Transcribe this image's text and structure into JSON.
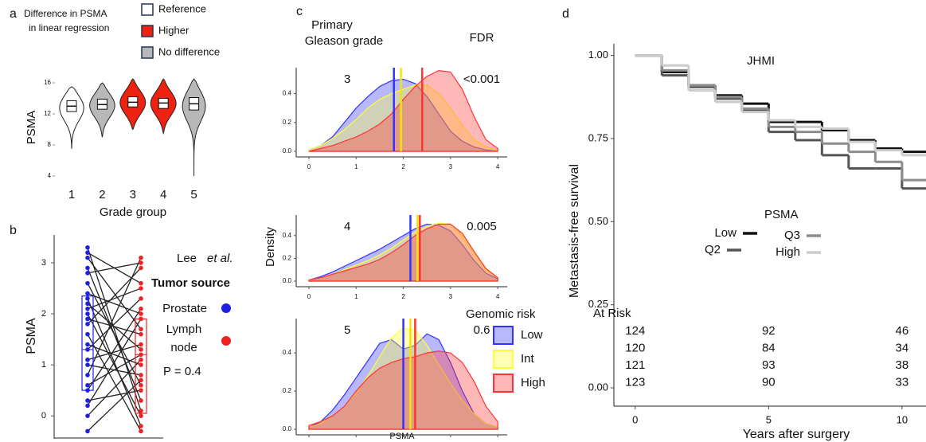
{
  "chart_data": [
    {
      "type": "violin",
      "panel": "a",
      "legend_title": [
        "Difference in PSMA",
        "in linear regression"
      ],
      "legend": [
        {
          "name": "Reference",
          "color": "#ffffff"
        },
        {
          "name": "Higher",
          "color": "#ee2211"
        },
        {
          "name": "No difference",
          "color": "#b8b8b8"
        }
      ],
      "categories": [
        "1",
        "2",
        "3",
        "4",
        "5"
      ],
      "xlabel": "Grade group",
      "ylabel": "PSMA",
      "ylim": [
        3,
        17
      ],
      "yticks": [
        4,
        8,
        12,
        16
      ],
      "groups": [
        {
          "color": "#ffffff",
          "min": 7.5,
          "q1": 12.3,
          "median": 13,
          "q3": 13.7,
          "max": 15.5
        },
        {
          "color": "#b8b8b8",
          "min": 9,
          "q1": 12.6,
          "median": 13.2,
          "q3": 13.9,
          "max": 16
        },
        {
          "color": "#ee2211",
          "min": 10,
          "q1": 12.9,
          "median": 13.5,
          "q3": 14.2,
          "max": 16.5
        },
        {
          "color": "#ee2211",
          "min": 9.5,
          "q1": 12.7,
          "median": 13.4,
          "q3": 14,
          "max": 16.5
        },
        {
          "color": "#b8b8b8",
          "min": 4,
          "q1": 12.5,
          "median": 13.3,
          "q3": 14.1,
          "max": 16.5
        }
      ]
    },
    {
      "type": "paired",
      "panel": "b",
      "ylabel": "PSMA",
      "ylim": [
        -0.45,
        3.5
      ],
      "yticks": [
        0,
        1,
        2,
        3
      ],
      "author": "Lee",
      "author_suffix": "et al.",
      "legend_title": "Tumor source",
      "p_text": "P = 0.4",
      "series": [
        {
          "name": "Prostate",
          "color": "#1f1fe6",
          "values": [
            3.3,
            3.2,
            3.1,
            2.9,
            2.8,
            2.6,
            2.4,
            2.3,
            2.2,
            2.1,
            2.0,
            1.9,
            1.8,
            1.6,
            1.4,
            1.3,
            1.1,
            1.0,
            0.8,
            0.6,
            0.5,
            0.3,
            0.2,
            0.0,
            -0.3
          ],
          "box": {
            "q1": 0.5,
            "median": 1.3,
            "q3": 2.35
          }
        },
        {
          "name": "Lymph node",
          "color": "#ee2222",
          "values": [
            0.1,
            2.6,
            1.7,
            0.3,
            3.0,
            0.6,
            2.0,
            -0.2,
            1.3,
            2.5,
            0.0,
            1.6,
            2.9,
            -0.3,
            1.0,
            2.3,
            1.4,
            0.8,
            3.1,
            1.2,
            2.1,
            0.5,
            1.9,
            1.1,
            0.7
          ],
          "box": {
            "q1": 0.05,
            "median": 1.2,
            "q3": 1.9
          }
        }
      ]
    },
    {
      "type": "density",
      "panel": "c",
      "header": [
        "Primary",
        "Gleason grade"
      ],
      "fdr_title": "FDR",
      "xlabel": "PSMA",
      "ylabel": "Density",
      "xlim": [
        -0.27,
        4.2
      ],
      "xticks": [
        0,
        1,
        2,
        3,
        4
      ],
      "ylim": [
        0,
        0.58
      ],
      "yticks": [
        {
          "value": 0,
          "label": "0.0"
        },
        0.2,
        0.4
      ],
      "legend_title": "Genomic risk",
      "series": [
        {
          "name": "Low",
          "color": "#3333ff"
        },
        {
          "name": "Int",
          "color": "#ffff33"
        },
        {
          "name": "High",
          "color": "#ff3333"
        }
      ],
      "x": [
        0,
        0.25,
        0.5,
        0.75,
        1,
        1.25,
        1.5,
        1.75,
        2,
        2.25,
        2.5,
        2.75,
        3,
        3.25,
        3.5,
        3.75,
        4
      ],
      "panels": [
        {
          "label": "3",
          "fdr": "<0.001",
          "medians": [
            1.8,
            1.95,
            2.4
          ],
          "densities": [
            [
              0.01,
              0.04,
              0.1,
              0.2,
              0.3,
              0.38,
              0.45,
              0.49,
              0.5,
              0.47,
              0.38,
              0.26,
              0.14,
              0.07,
              0.03,
              0.01,
              0.0
            ],
            [
              0.01,
              0.04,
              0.09,
              0.15,
              0.22,
              0.3,
              0.36,
              0.4,
              0.43,
              0.46,
              0.46,
              0.4,
              0.3,
              0.18,
              0.08,
              0.03,
              0.01
            ],
            [
              0.0,
              0.02,
              0.04,
              0.07,
              0.1,
              0.14,
              0.19,
              0.26,
              0.36,
              0.45,
              0.52,
              0.56,
              0.55,
              0.43,
              0.24,
              0.08,
              0.02
            ]
          ]
        },
        {
          "label": "4",
          "fdr": "0.005",
          "medians": [
            2.15,
            2.3,
            2.35
          ],
          "densities": [
            [
              0.01,
              0.04,
              0.08,
              0.13,
              0.18,
              0.23,
              0.28,
              0.34,
              0.4,
              0.46,
              0.5,
              0.49,
              0.44,
              0.32,
              0.18,
              0.07,
              0.02
            ],
            [
              0.01,
              0.03,
              0.06,
              0.1,
              0.14,
              0.18,
              0.23,
              0.29,
              0.36,
              0.43,
              0.48,
              0.51,
              0.5,
              0.4,
              0.25,
              0.1,
              0.03
            ],
            [
              0.01,
              0.03,
              0.06,
              0.09,
              0.12,
              0.15,
              0.19,
              0.25,
              0.32,
              0.4,
              0.46,
              0.5,
              0.5,
              0.42,
              0.26,
              0.11,
              0.03
            ]
          ]
        },
        {
          "label": "5",
          "fdr": "0.6",
          "medians": [
            2.0,
            2.15,
            2.25
          ],
          "densities": [
            [
              0.01,
              0.04,
              0.1,
              0.18,
              0.27,
              0.36,
              0.45,
              0.47,
              0.42,
              0.44,
              0.5,
              0.47,
              0.35,
              0.2,
              0.08,
              0.03,
              0.01
            ],
            [
              0.01,
              0.03,
              0.07,
              0.12,
              0.19,
              0.28,
              0.38,
              0.48,
              0.53,
              0.52,
              0.44,
              0.34,
              0.24,
              0.15,
              0.08,
              0.03,
              0.01
            ],
            [
              0.02,
              0.04,
              0.07,
              0.12,
              0.2,
              0.27,
              0.32,
              0.35,
              0.37,
              0.38,
              0.4,
              0.41,
              0.4,
              0.35,
              0.25,
              0.12,
              0.04
            ]
          ]
        }
      ]
    },
    {
      "type": "step",
      "panel": "d",
      "title": "JHMI",
      "xlabel": "Years after surgery",
      "ylabel": "Metastasis-free survival",
      "xlim": [
        -0.8,
        10.9
      ],
      "xticks": [
        0,
        5,
        10
      ],
      "ylim": [
        -0.055,
        1.035
      ],
      "yticks": [
        {
          "value": 1,
          "label": "1.00"
        },
        {
          "value": 0.75,
          "label": "0.75"
        },
        {
          "value": 0.5,
          "label": "0.50"
        },
        {
          "value": 0.25,
          "label": "0.25"
        },
        {
          "value": 0,
          "label": "0.00"
        }
      ],
      "legend_title": "PSMA",
      "at_risk_title": "At Risk",
      "at_risk_x": [
        0,
        5,
        10
      ],
      "x": [
        0,
        1,
        2,
        3,
        4,
        5,
        6,
        7,
        8,
        9,
        10
      ],
      "series": [
        {
          "name": "Low",
          "color": "#111111",
          "values": [
            1.0,
            0.95,
            0.91,
            0.88,
            0.855,
            0.8,
            0.8,
            0.775,
            0.745,
            0.72,
            0.71
          ],
          "at_risk": [
            124,
            92,
            46
          ]
        },
        {
          "name": "Q2",
          "color": "#555555",
          "values": [
            1.0,
            0.94,
            0.905,
            0.87,
            0.835,
            0.77,
            0.745,
            0.7,
            0.66,
            0.66,
            0.6
          ],
          "at_risk": [
            120,
            84,
            34
          ]
        },
        {
          "name": "Q3",
          "color": "#8c8c8c",
          "values": [
            1.0,
            0.955,
            0.91,
            0.875,
            0.84,
            0.785,
            0.77,
            0.735,
            0.71,
            0.68,
            0.625
          ],
          "at_risk": [
            121,
            93,
            38
          ]
        },
        {
          "name": "High",
          "color": "#cccccc",
          "values": [
            1.0,
            0.97,
            0.895,
            0.86,
            0.83,
            0.805,
            0.785,
            0.78,
            0.74,
            0.715,
            0.7
          ],
          "at_risk": [
            123,
            90,
            33
          ]
        }
      ]
    }
  ]
}
